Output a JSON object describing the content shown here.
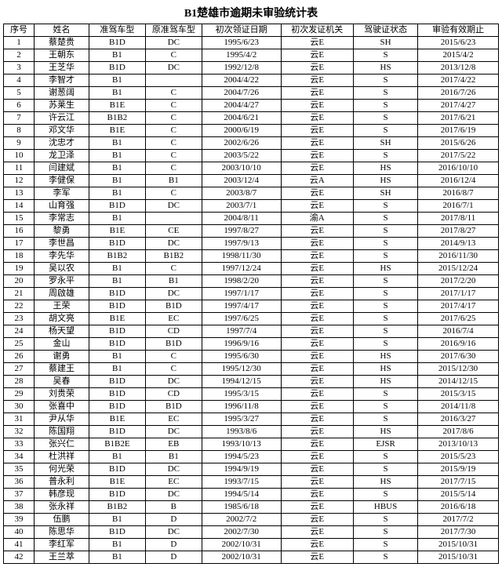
{
  "title": "B1楚雄市逾期未审验统计表",
  "columns": [
    "序号",
    "姓名",
    "准驾车型",
    "原准驾车型",
    "初次领证日期",
    "初次发证机关",
    "驾驶证状态",
    "审验有效期止"
  ],
  "rows": [
    [
      "1",
      "蔡楚贵",
      "B1D",
      "DC",
      "1995/6/23",
      "云E",
      "SH",
      "2015/6/23"
    ],
    [
      "2",
      "王朝东",
      "B1",
      "C",
      "1995/4/2",
      "云E",
      "S",
      "2015/4/2"
    ],
    [
      "3",
      "王芝华",
      "B1D",
      "DC",
      "1992/12/8",
      "云E",
      "HS",
      "2013/12/8"
    ],
    [
      "4",
      "李智才",
      "B1",
      "",
      "2004/4/22",
      "云E",
      "S",
      "2017/4/22"
    ],
    [
      "5",
      "谢葱阔",
      "B1",
      "C",
      "2004/7/26",
      "云E",
      "S",
      "2016/7/26"
    ],
    [
      "6",
      "苏莱生",
      "B1E",
      "C",
      "2004/4/27",
      "云E",
      "S",
      "2017/4/27"
    ],
    [
      "7",
      "许云江",
      "B1B2",
      "C",
      "2004/6/21",
      "云E",
      "S",
      "2017/6/21"
    ],
    [
      "8",
      "邓文华",
      "B1E",
      "C",
      "2000/6/19",
      "云E",
      "S",
      "2017/6/19"
    ],
    [
      "9",
      "沈忠才",
      "B1",
      "C",
      "2002/6/26",
      "云E",
      "SH",
      "2015/6/26"
    ],
    [
      "10",
      "龙卫泽",
      "B1",
      "C",
      "2003/5/22",
      "云E",
      "S",
      "2017/5/22"
    ],
    [
      "11",
      "闫建斌",
      "B1",
      "C",
      "2003/10/10",
      "云E",
      "HS",
      "2016/10/10"
    ],
    [
      "12",
      "李健保",
      "B1",
      "B1",
      "2003/12/4",
      "云A",
      "HS",
      "2016/12/4"
    ],
    [
      "13",
      "李军",
      "B1",
      "C",
      "2003/8/7",
      "云E",
      "SH",
      "2016/8/7"
    ],
    [
      "14",
      "山育强",
      "B1D",
      "DC",
      "2003/7/1",
      "云E",
      "S",
      "2016/7/1"
    ],
    [
      "15",
      "李常志",
      "B1",
      "",
      "2004/8/11",
      "渝A",
      "S",
      "2017/8/11"
    ],
    [
      "16",
      "黎勇",
      "B1E",
      "CE",
      "1997/8/27",
      "云E",
      "S",
      "2017/8/27"
    ],
    [
      "17",
      "李世昌",
      "B1D",
      "DC",
      "1997/9/13",
      "云E",
      "S",
      "2014/9/13"
    ],
    [
      "18",
      "李先华",
      "B1B2",
      "B1B2",
      "1998/11/30",
      "云E",
      "S",
      "2016/11/30"
    ],
    [
      "19",
      "吴以农",
      "B1",
      "C",
      "1997/12/24",
      "云E",
      "HS",
      "2015/12/24"
    ],
    [
      "20",
      "罗永平",
      "B1",
      "B1",
      "1998/2/20",
      "云E",
      "S",
      "2017/2/20"
    ],
    [
      "21",
      "周啟雄",
      "B1D",
      "DC",
      "1997/1/17",
      "云E",
      "S",
      "2017/1/17"
    ],
    [
      "22",
      "王荣",
      "B1D",
      "B1D",
      "1997/4/17",
      "云E",
      "S",
      "2017/4/17"
    ],
    [
      "23",
      "胡文亮",
      "B1E",
      "EC",
      "1997/6/25",
      "云E",
      "S",
      "2017/6/25"
    ],
    [
      "24",
      "杨天望",
      "B1D",
      "CD",
      "1997/7/4",
      "云E",
      "S",
      "2016/7/4"
    ],
    [
      "25",
      "金山",
      "B1D",
      "B1D",
      "1996/9/16",
      "云E",
      "S",
      "2016/9/16"
    ],
    [
      "26",
      "谢勇",
      "B1",
      "C",
      "1995/6/30",
      "云E",
      "HS",
      "2017/6/30"
    ],
    [
      "27",
      "蔡建王",
      "B1",
      "C",
      "1995/12/30",
      "云E",
      "HS",
      "2015/12/30"
    ],
    [
      "28",
      "吴春",
      "B1D",
      "DC",
      "1994/12/15",
      "云E",
      "HS",
      "2014/12/15"
    ],
    [
      "29",
      "刘贵荣",
      "B1D",
      "CD",
      "1995/3/15",
      "云E",
      "S",
      "2015/3/15"
    ],
    [
      "30",
      "张喜中",
      "B1D",
      "B1D",
      "1996/11/8",
      "云E",
      "S",
      "2014/11/8"
    ],
    [
      "31",
      "尹从华",
      "B1E",
      "EC",
      "1995/3/27",
      "云E",
      "S",
      "2016/3/27"
    ],
    [
      "32",
      "陈国翔",
      "B1D",
      "DC",
      "1993/8/6",
      "云E",
      "HS",
      "2017/8/6"
    ],
    [
      "33",
      "张兴仁",
      "B1B2E",
      "EB",
      "1993/10/13",
      "云E",
      "EJSR",
      "2013/10/13"
    ],
    [
      "34",
      "杜洪祥",
      "B1",
      "B1",
      "1994/5/23",
      "云E",
      "S",
      "2015/5/23"
    ],
    [
      "35",
      "何光荣",
      "B1D",
      "DC",
      "1994/9/19",
      "云E",
      "S",
      "2015/9/19"
    ],
    [
      "36",
      "普永利",
      "B1E",
      "EC",
      "1993/7/15",
      "云E",
      "HS",
      "2017/7/15"
    ],
    [
      "37",
      "韩彦现",
      "B1D",
      "DC",
      "1994/5/14",
      "云E",
      "S",
      "2015/5/14"
    ],
    [
      "38",
      "张永祥",
      "B1B2",
      "B",
      "1985/6/18",
      "云E",
      "HBUS",
      "2016/6/18"
    ],
    [
      "39",
      "伍鹏",
      "B1",
      "D",
      "2002/7/2",
      "云E",
      "S",
      "2017/7/2"
    ],
    [
      "40",
      "陈思华",
      "B1D",
      "DC",
      "2002/7/30",
      "云E",
      "S",
      "2017/7/30"
    ],
    [
      "41",
      "李红军",
      "B1",
      "D",
      "2002/10/31",
      "云E",
      "S",
      "2015/10/31"
    ],
    [
      "42",
      "王兰萃",
      "B1",
      "D",
      "2002/10/31",
      "云E",
      "S",
      "2015/10/31"
    ]
  ]
}
